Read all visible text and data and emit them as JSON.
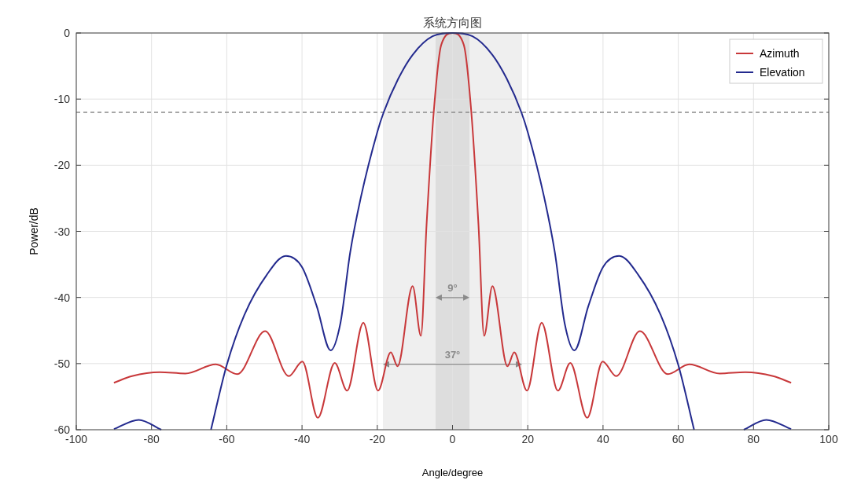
{
  "chart_data": {
    "type": "line",
    "title": "系统方向图",
    "xlabel": "Angle/degree",
    "ylabel": "Power/dB",
    "xlim": [
      -100,
      100
    ],
    "xticks": [
      -100,
      -80,
      -60,
      -40,
      -20,
      0,
      20,
      40,
      60,
      80,
      100
    ],
    "ylim": [
      -60,
      0
    ],
    "yticks": [
      -60,
      -50,
      -40,
      -30,
      -20,
      -10,
      0
    ],
    "grid": true,
    "legend": "top right",
    "line_style": "solid",
    "marker": "none",
    "series": [
      {
        "name": "Azimuth",
        "color": "#c8383a",
        "x": [
          -90,
          -85.2,
          -77.8,
          -71,
          -62.9,
          -57.2,
          -49.8,
          -43.5,
          -39.9,
          -35.8,
          -31.3,
          -28,
          -23.7,
          -19.8,
          -16.4,
          -14.6,
          -10.6,
          -8.4,
          -6.9,
          -5,
          -3,
          0,
          3,
          5,
          6.9,
          8.4,
          10.6,
          14.6,
          16.4,
          19.8,
          23.7,
          28,
          31.3,
          35.8,
          39.9,
          43.5,
          49.8,
          57.2,
          62.9,
          71,
          77.8,
          85.2,
          90
        ],
        "values": [
          -52.9,
          -51.9,
          -51.3,
          -51.5,
          -50.1,
          -51.6,
          -45.1,
          -51.9,
          -49.7,
          -58.2,
          -49.9,
          -54.1,
          -43.8,
          -54.1,
          -48.3,
          -50.4,
          -38.3,
          -45.8,
          -29,
          -12,
          -1.8,
          0,
          -1.8,
          -12,
          -29,
          -45.8,
          -38.3,
          -50.4,
          -48.3,
          -54.1,
          -43.8,
          -54.1,
          -49.9,
          -58.2,
          -49.7,
          -51.9,
          -45.1,
          -51.6,
          -50.1,
          -51.5,
          -51.3,
          -51.9,
          -52.9
        ]
      },
      {
        "name": "Elevation",
        "color": "#232a8e",
        "x": [
          -64.2,
          -60,
          -55.3,
          -49.4,
          -44.3,
          -40,
          -36.1,
          -32.4,
          -29.8,
          -27.2,
          -24.3,
          -20,
          -18.3,
          -14.4,
          -10.6,
          -5.3,
          0,
          5.3,
          10.6,
          14.4,
          18.3,
          20,
          24.3,
          27.2,
          29.8,
          32.4,
          36.1,
          40,
          44.3,
          49.4,
          55.3,
          60,
          64.2
        ],
        "values": [
          -60,
          -50.2,
          -42.6,
          -36.6,
          -33.7,
          -35.4,
          -41.3,
          -48,
          -43.9,
          -33.2,
          -24.7,
          -15,
          -12,
          -6.9,
          -3.3,
          -0.5,
          0,
          -0.5,
          -3.3,
          -6.9,
          -12,
          -15,
          -24.7,
          -33.2,
          -43.9,
          -48,
          -41.3,
          -35.4,
          -33.7,
          -36.6,
          -42.6,
          -50.2,
          -60
        ]
      },
      {
        "color": "#232a8e",
        "x": [
          -90,
          -83.4,
          -77.4
        ],
        "values": [
          -59.9,
          -58.5,
          -60
        ]
      },
      {
        "color": "#232a8e",
        "x": [
          77.4,
          83.4,
          90
        ],
        "values": [
          -60,
          -58.5,
          -59.9
        ]
      }
    ],
    "bands": [
      {
        "axis": "x",
        "from": -18.5,
        "to": 18.5,
        "color": "#efefef",
        "label": "37°"
      },
      {
        "axis": "x",
        "from": -4.5,
        "to": 4.5,
        "color": "#dddddd",
        "label": "9°"
      }
    ],
    "ref_lines": [
      {
        "axis": "y",
        "value": -12,
        "color": "#8a8a8a",
        "line_style": "dashed"
      }
    ]
  }
}
